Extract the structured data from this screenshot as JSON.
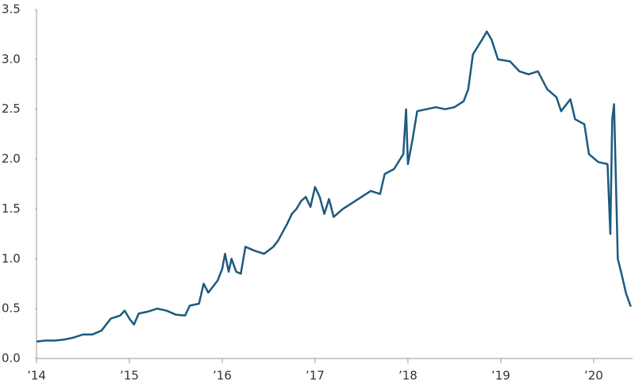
{
  "chart_data": {
    "type": "line",
    "x": [
      2014.0,
      2014.1,
      2014.2,
      2014.3,
      2014.4,
      2014.5,
      2014.6,
      2014.7,
      2014.8,
      2014.9,
      2014.95,
      2015.0,
      2015.05,
      2015.1,
      2015.2,
      2015.3,
      2015.4,
      2015.5,
      2015.6,
      2015.65,
      2015.75,
      2015.8,
      2015.85,
      2015.95,
      2016.0,
      2016.03,
      2016.07,
      2016.1,
      2016.15,
      2016.2,
      2016.25,
      2016.35,
      2016.45,
      2016.55,
      2016.6,
      2016.7,
      2016.75,
      2016.8,
      2016.85,
      2016.9,
      2016.95,
      2017.0,
      2017.05,
      2017.1,
      2017.15,
      2017.2,
      2017.3,
      2017.4,
      2017.5,
      2017.6,
      2017.7,
      2017.75,
      2017.85,
      2017.95,
      2017.98,
      2018.0,
      2018.05,
      2018.1,
      2018.2,
      2018.3,
      2018.4,
      2018.5,
      2018.6,
      2018.65,
      2018.7,
      2018.8,
      2018.85,
      2018.9,
      2018.97,
      2019.1,
      2019.2,
      2019.3,
      2019.4,
      2019.5,
      2019.6,
      2019.65,
      2019.75,
      2019.8,
      2019.9,
      2019.95,
      2020.05,
      2020.15,
      2020.18,
      2020.2,
      2020.22,
      2020.24,
      2020.26,
      2020.3,
      2020.35,
      2020.4
    ],
    "values": [
      0.17,
      0.18,
      0.18,
      0.19,
      0.21,
      0.24,
      0.24,
      0.28,
      0.4,
      0.43,
      0.48,
      0.4,
      0.34,
      0.45,
      0.47,
      0.5,
      0.48,
      0.44,
      0.43,
      0.53,
      0.55,
      0.75,
      0.66,
      0.78,
      0.9,
      1.05,
      0.87,
      1.0,
      0.87,
      0.85,
      1.12,
      1.08,
      1.05,
      1.12,
      1.18,
      1.35,
      1.45,
      1.5,
      1.58,
      1.62,
      1.52,
      1.72,
      1.62,
      1.45,
      1.6,
      1.42,
      1.5,
      1.56,
      1.62,
      1.68,
      1.65,
      1.85,
      1.9,
      2.05,
      2.5,
      1.95,
      2.2,
      2.48,
      2.5,
      2.52,
      2.5,
      2.52,
      2.58,
      2.7,
      3.05,
      3.2,
      3.28,
      3.2,
      3.0,
      2.98,
      2.88,
      2.85,
      2.88,
      2.7,
      2.62,
      2.48,
      2.6,
      2.4,
      2.35,
      2.05,
      1.97,
      1.95,
      1.25,
      2.4,
      2.55,
      1.8,
      1.0,
      0.85,
      0.65,
      0.52
    ],
    "color": "#1d5a7f",
    "xlim": [
      2014,
      2020.42
    ],
    "xticks": [
      {
        "value": 2014,
        "label": "’14"
      },
      {
        "value": 2015,
        "label": "’15"
      },
      {
        "value": 2016,
        "label": "’16"
      },
      {
        "value": 2017,
        "label": "’17"
      },
      {
        "value": 2018,
        "label": "’18"
      },
      {
        "value": 2019,
        "label": "’19"
      },
      {
        "value": 2020,
        "label": "’20"
      }
    ],
    "ylim": [
      0,
      3.5
    ],
    "yticks": [
      {
        "value": 0,
        "label": "0.0"
      },
      0.5,
      {
        "value": 1,
        "label": "1.0"
      },
      1.5,
      {
        "value": 2,
        "label": "2.0"
      },
      2.5,
      {
        "value": 3,
        "label": "3.0"
      },
      3.5
    ]
  }
}
